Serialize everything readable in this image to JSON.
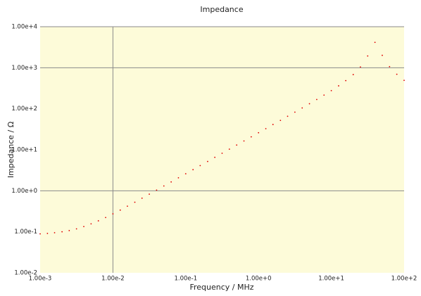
{
  "chart_data": {
    "type": "scatter",
    "title": "Impedance",
    "x_label": "Frequency / MHz",
    "y_label": "Impedance / Ω",
    "log_x": true,
    "log_y": true,
    "background": "#fdfbd9",
    "grid_color": "#8a8a8a",
    "xgrid": [
      0.01
    ],
    "ygrid": [
      1,
      1000,
      10000
    ],
    "xlim": [
      0.001,
      100
    ],
    "ylim": [
      0.01,
      10000
    ],
    "xticks": [
      {
        "value": 0.001,
        "label": "1.00e-3"
      },
      {
        "value": 0.01,
        "label": "1.00e-2"
      },
      {
        "value": 0.1,
        "label": "1.00e-1"
      },
      {
        "value": 1,
        "label": "1.00e+0"
      },
      {
        "value": 10,
        "label": "1.00e+1"
      },
      {
        "value": 100,
        "label": "1.00e+2"
      }
    ],
    "yticks": [
      {
        "value": 0.01,
        "label": "1.00e-2"
      },
      {
        "value": 0.1,
        "label": "1.00e-1"
      },
      {
        "value": 1,
        "label": "1.00e+0"
      },
      {
        "value": 10,
        "label": "1.00e+1"
      },
      {
        "value": 100,
        "label": "1.00e+2"
      },
      {
        "value": 1000,
        "label": "1.00e+3"
      },
      {
        "value": 10000,
        "label": "1.00e+4"
      }
    ],
    "series": [
      {
        "color": "#e00000",
        "x": [
          0.001,
          0.00126,
          0.00158,
          0.002,
          0.00251,
          0.00316,
          0.00398,
          0.00501,
          0.00631,
          0.00794,
          0.01,
          0.0126,
          0.0158,
          0.02,
          0.0251,
          0.0316,
          0.0398,
          0.0501,
          0.0631,
          0.0794,
          0.1,
          0.126,
          0.158,
          0.2,
          0.251,
          0.316,
          0.398,
          0.501,
          0.631,
          0.794,
          1,
          1.26,
          1.58,
          2,
          2.51,
          3.16,
          3.98,
          5.01,
          6.31,
          7.94,
          10,
          12.6,
          15.8,
          20,
          25.1,
          31.6,
          39.8,
          50.1,
          63.1,
          79.4,
          100
        ],
        "values": [
          0.089,
          0.091,
          0.095,
          0.1,
          0.107,
          0.118,
          0.134,
          0.156,
          0.185,
          0.223,
          0.274,
          0.338,
          0.421,
          0.525,
          0.658,
          0.827,
          1.04,
          1.31,
          1.64,
          2.07,
          2.6,
          3.27,
          4.12,
          5.18,
          6.53,
          8.22,
          10.35,
          13.03,
          16.4,
          20.65,
          26,
          32.7,
          41.3,
          51.9,
          65.6,
          82.7,
          104.5,
          132.4,
          168.2,
          215,
          277,
          362,
          485,
          681,
          1043,
          1934,
          4157,
          2005,
          1066,
          693,
          492
        ]
      }
    ]
  }
}
